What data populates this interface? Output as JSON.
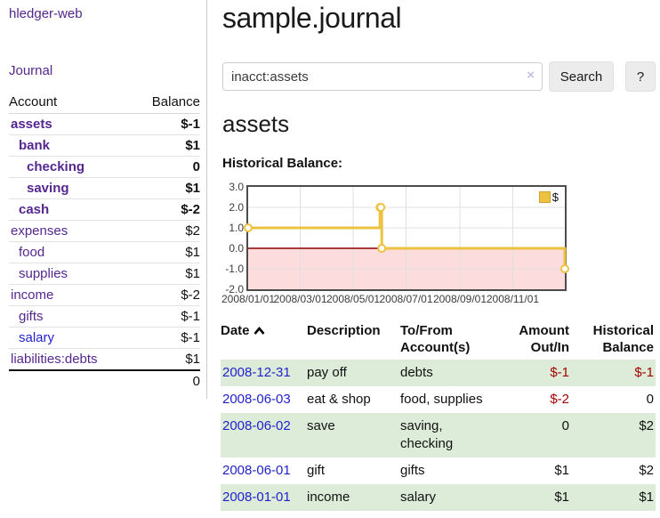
{
  "app": {
    "brand": "hledger-web",
    "nav_journal": "Journal"
  },
  "sidebar": {
    "table_headers": {
      "account": "Account",
      "balance": "Balance"
    },
    "accounts": [
      {
        "name": "assets",
        "depth": 1,
        "bold": true,
        "balance": "$-1",
        "negative": "strong"
      },
      {
        "name": "bank",
        "depth": 2,
        "bold": true,
        "balance": "$1"
      },
      {
        "name": "checking",
        "depth": 3,
        "bold": true,
        "balance": "0"
      },
      {
        "name": "saving",
        "depth": 3,
        "bold": true,
        "balance": "$1"
      },
      {
        "name": "cash",
        "depth": 2,
        "bold": true,
        "balance": "$-2",
        "negative": "strong"
      },
      {
        "name": "expenses",
        "depth": 1,
        "bold": false,
        "balance": "$2"
      },
      {
        "name": "food",
        "depth": 2,
        "bold": false,
        "balance": "$1"
      },
      {
        "name": "supplies",
        "depth": 2,
        "bold": false,
        "balance": "$1"
      },
      {
        "name": "income",
        "depth": 1,
        "bold": false,
        "balance": "$-2",
        "negative": "muted"
      },
      {
        "name": "gifts",
        "depth": 2,
        "bold": false,
        "balance": "$-1",
        "negative": "muted"
      },
      {
        "name": "salary",
        "depth": 2,
        "bold": false,
        "balance": "$-1",
        "negative": "muted",
        "link_color": "blue"
      },
      {
        "name": "liabilities:debts",
        "depth": 1,
        "bold": false,
        "balance": "$1"
      }
    ],
    "total": "0"
  },
  "header": {
    "title": "sample.journal"
  },
  "search": {
    "value": "inacct:assets",
    "clear_icon": "×",
    "search_button": "Search",
    "help_button": "?"
  },
  "main": {
    "account_title": "assets",
    "chart_caption": "Historical Balance:"
  },
  "chart_data": {
    "type": "line",
    "steps": true,
    "title": "Historical Balance",
    "series": [
      {
        "name": "$",
        "color": "#edc240",
        "points": [
          {
            "date": "2008-01-01",
            "value": 1
          },
          {
            "date": "2008-06-01",
            "value": 2
          },
          {
            "date": "2008-06-02",
            "value": 2
          },
          {
            "date": "2008-06-03",
            "value": 0
          },
          {
            "date": "2008-12-31",
            "value": -1
          }
        ]
      }
    ],
    "x_start": "2008-01-01",
    "x_end": "2008-12-31",
    "ylim": [
      -2,
      3
    ],
    "yticks": [
      "3.0",
      "2.0",
      "1.0",
      "0.0",
      "-1.0",
      "-2.0"
    ],
    "xticks": [
      {
        "label": "2008/01/01",
        "date": "2008-01-01"
      },
      {
        "label": "2008/03/01",
        "date": "2008-03-01"
      },
      {
        "label": "2008/05/01",
        "date": "2008-05-01"
      },
      {
        "label": "2008/07/01",
        "date": "2008-07-01"
      },
      {
        "label": "2008/09/01",
        "date": "2008-09-01"
      },
      {
        "label": "2008/11/01",
        "date": "2008-11-01"
      }
    ],
    "legend_position": "top-right",
    "grid": true,
    "gridline_color": "#e0e0e0",
    "negative_region_color": "#fcdcdc",
    "zero_line_color": "#8b0000"
  },
  "register": {
    "columns": [
      "Date",
      "Description",
      "To/From Account(s)",
      "Amount Out/In",
      "Historical Balance"
    ],
    "sort": {
      "column": "Date",
      "direction": "ascending"
    },
    "rows": [
      {
        "date": "2008-12-31",
        "description": "pay off",
        "accounts": "debts",
        "amount": "$-1",
        "balance": "$-1",
        "amount_negative": true,
        "balance_negative": true
      },
      {
        "date": "2008-06-03",
        "description": "eat & shop",
        "accounts": "food, supplies",
        "amount": "$-2",
        "balance": "0",
        "amount_negative": true,
        "balance_negative": false
      },
      {
        "date": "2008-06-02",
        "description": "save",
        "accounts": "saving, checking",
        "amount": "0",
        "balance": "$2",
        "amount_negative": false,
        "balance_negative": false
      },
      {
        "date": "2008-06-01",
        "description": "gift",
        "accounts": "gifts",
        "amount": "$1",
        "balance": "$2",
        "amount_negative": false,
        "balance_negative": false
      },
      {
        "date": "2008-01-01",
        "description": "income",
        "accounts": "salary",
        "amount": "$1",
        "balance": "$1",
        "amount_negative": false,
        "balance_negative": false
      }
    ]
  },
  "colors": {
    "link_purple": "#54278f",
    "link_blue": "#2222cc",
    "negative_strong": "#a40000",
    "negative_muted": "#bf7b7b",
    "row_stripe_green": "#ddecd9",
    "chart_series_yellow": "#edc240",
    "chart_negative_region": "#fcdcdc",
    "chart_zero_line": "#8b0000"
  }
}
